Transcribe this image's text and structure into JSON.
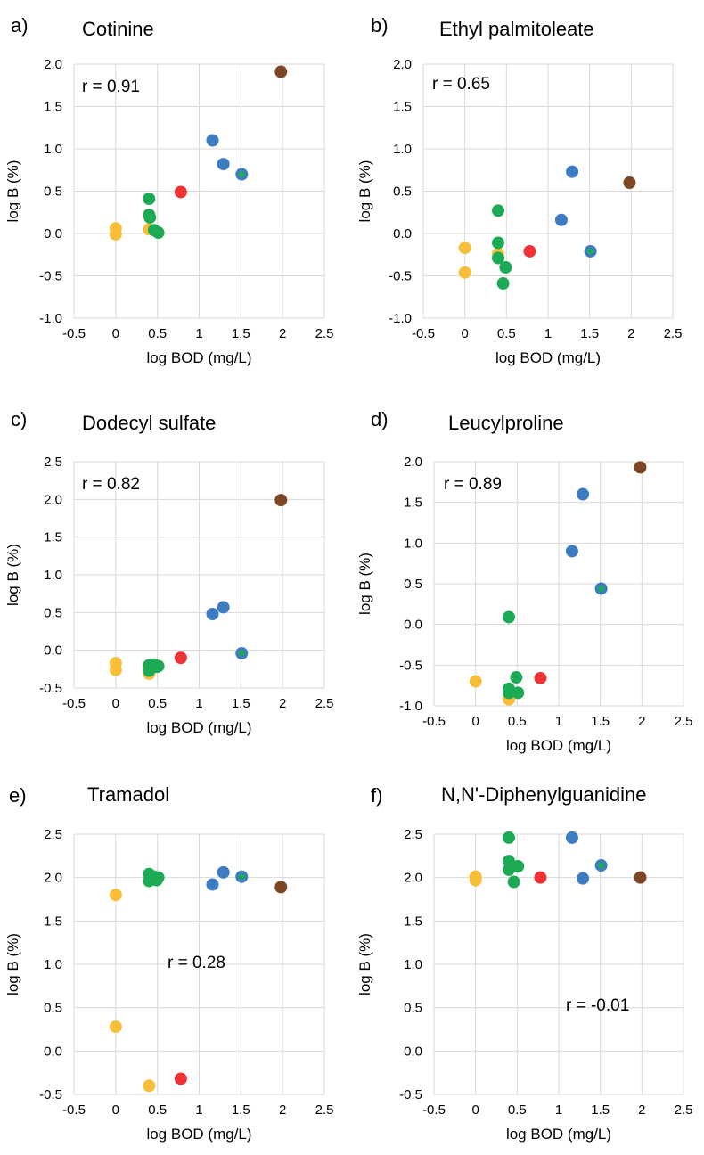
{
  "chart_data": [
    {
      "type": "scatter",
      "letter": "a)",
      "title": "Cotinine",
      "xlabel": "log BOD (mg/L)",
      "ylabel": "log B (%)",
      "xlim": [
        -0.5,
        2.5
      ],
      "ylim": [
        -1.0,
        2.0
      ],
      "xticks": [
        "-0.5",
        "0",
        "0.5",
        "1",
        "1.5",
        "2",
        "2.5"
      ],
      "yticks": [
        "2.0",
        "1.5",
        "1.0",
        "0.5",
        "0.0",
        "-0.5",
        "-1.0"
      ],
      "annotation": "r = 0.91",
      "grid": true,
      "points": [
        {
          "x": 0,
          "y": 0.06,
          "color": "#F6BE39"
        },
        {
          "x": 0,
          "y": -0.01,
          "color": "#F6BE39"
        },
        {
          "x": 0.4,
          "y": 0.05,
          "color": "#F6BE39"
        },
        {
          "x": 0.4,
          "y": 0.41,
          "color": "#1DAA55"
        },
        {
          "x": 0.4,
          "y": 0.22,
          "color": "#1DAA55"
        },
        {
          "x": 0.41,
          "y": 0.19,
          "color": "#1DAA55"
        },
        {
          "x": 0.46,
          "y": 0.04,
          "color": "#1DAA55"
        },
        {
          "x": 0.51,
          "y": 0.01,
          "color": "#1DAA55"
        },
        {
          "x": 0.78,
          "y": 0.49,
          "color": "#EE3436"
        },
        {
          "x": 1.16,
          "y": 1.1,
          "color": "#3D7CC1"
        },
        {
          "x": 1.29,
          "y": 0.82,
          "color": "#3D7CC1"
        },
        {
          "x": 1.51,
          "y": 0.7,
          "color": "#3D7CC1"
        },
        {
          "x": 1.51,
          "y": 0.7,
          "color": "#1DAA55",
          "small": true
        },
        {
          "x": 1.98,
          "y": 1.91,
          "color": "#7B4724"
        }
      ]
    },
    {
      "type": "scatter",
      "letter": "b)",
      "title": "Ethyl palmitoleate",
      "xlabel": "log BOD (mg/L)",
      "ylabel": "log B (%)",
      "xlim": [
        -0.5,
        2.5
      ],
      "ylim": [
        -1.0,
        2.0
      ],
      "xticks": [
        "-0.5",
        "0",
        "0.5",
        "1",
        "1.5",
        "2",
        "2.5"
      ],
      "yticks": [
        "2.0",
        "1.5",
        "1.0",
        "0.5",
        "0.0",
        "-0.5",
        "-1.0"
      ],
      "annotation": "r = 0.65",
      "grid": true,
      "points": [
        {
          "x": 0,
          "y": -0.17,
          "color": "#F6BE39"
        },
        {
          "x": 0,
          "y": -0.46,
          "color": "#F6BE39"
        },
        {
          "x": 0.4,
          "y": -0.24,
          "color": "#F6BE39"
        },
        {
          "x": 0.4,
          "y": 0.27,
          "color": "#1DAA55"
        },
        {
          "x": 0.4,
          "y": -0.11,
          "color": "#1DAA55"
        },
        {
          "x": 0.4,
          "y": -0.29,
          "color": "#1DAA55"
        },
        {
          "x": 0.49,
          "y": -0.4,
          "color": "#1DAA55"
        },
        {
          "x": 0.46,
          "y": -0.59,
          "color": "#1DAA55"
        },
        {
          "x": 0.78,
          "y": -0.21,
          "color": "#EE3436"
        },
        {
          "x": 1.16,
          "y": 0.16,
          "color": "#3D7CC1"
        },
        {
          "x": 1.29,
          "y": 0.73,
          "color": "#3D7CC1"
        },
        {
          "x": 1.51,
          "y": -0.21,
          "color": "#3D7CC1"
        },
        {
          "x": 1.51,
          "y": -0.21,
          "color": "#1DAA55",
          "small": true
        },
        {
          "x": 1.98,
          "y": 0.6,
          "color": "#7B4724"
        }
      ]
    },
    {
      "type": "scatter",
      "letter": "c)",
      "title": "Dodecyl sulfate",
      "xlabel": "log BOD (mg/L)",
      "ylabel": "log B (%)",
      "xlim": [
        -0.5,
        2.5
      ],
      "ylim": [
        -0.5,
        2.5
      ],
      "xticks": [
        "-0.5",
        "0",
        "0.5",
        "1",
        "1.5",
        "2",
        "2.5"
      ],
      "yticks": [
        "2.5",
        "2.0",
        "1.5",
        "1.0",
        "0.5",
        "0.0",
        "-0.5"
      ],
      "annotation": "r = 0.82",
      "grid": true,
      "points": [
        {
          "x": 0,
          "y": -0.17,
          "color": "#F6BE39"
        },
        {
          "x": 0,
          "y": -0.26,
          "color": "#F6BE39"
        },
        {
          "x": 0.4,
          "y": -0.31,
          "color": "#F6BE39"
        },
        {
          "x": 0.4,
          "y": -0.2,
          "color": "#1DAA55"
        },
        {
          "x": 0.4,
          "y": -0.27,
          "color": "#1DAA55"
        },
        {
          "x": 0.46,
          "y": -0.19,
          "color": "#1DAA55"
        },
        {
          "x": 0.49,
          "y": -0.22,
          "color": "#1DAA55"
        },
        {
          "x": 0.51,
          "y": -0.21,
          "color": "#1DAA55"
        },
        {
          "x": 0.78,
          "y": -0.1,
          "color": "#EE3436"
        },
        {
          "x": 1.16,
          "y": 0.48,
          "color": "#3D7CC1"
        },
        {
          "x": 1.29,
          "y": 0.57,
          "color": "#3D7CC1"
        },
        {
          "x": 1.51,
          "y": -0.04,
          "color": "#3D7CC1"
        },
        {
          "x": 1.51,
          "y": -0.04,
          "color": "#1DAA55",
          "small": true
        },
        {
          "x": 1.98,
          "y": 1.99,
          "color": "#7B4724"
        }
      ]
    },
    {
      "type": "scatter",
      "letter": "d)",
      "title": "Leucylproline",
      "xlabel": "log BOD (mg/L)",
      "ylabel": "log B (%)",
      "xlim": [
        -0.5,
        2.5
      ],
      "ylim": [
        -1.0,
        2.0
      ],
      "xticks": [
        "-0.5",
        "0",
        "0.5",
        "1",
        "1.5",
        "2",
        "2.5"
      ],
      "yticks": [
        "2.0",
        "1.5",
        "1.0",
        "0.5",
        "0.0",
        "-0.5",
        "-1.0"
      ],
      "annotation": "r = 0.89",
      "grid": true,
      "points": [
        {
          "x": 0,
          "y": -0.7,
          "color": "#F6BE39"
        },
        {
          "x": 0.4,
          "y": -0.92,
          "color": "#F6BE39"
        },
        {
          "x": 0.4,
          "y": 0.09,
          "color": "#1DAA55"
        },
        {
          "x": 0.4,
          "y": -0.79,
          "color": "#1DAA55"
        },
        {
          "x": 0.4,
          "y": -0.84,
          "color": "#1DAA55"
        },
        {
          "x": 0.49,
          "y": -0.65,
          "color": "#1DAA55"
        },
        {
          "x": 0.51,
          "y": -0.84,
          "color": "#1DAA55"
        },
        {
          "x": 0.78,
          "y": -0.66,
          "color": "#EE3436"
        },
        {
          "x": 1.16,
          "y": 0.9,
          "color": "#3D7CC1"
        },
        {
          "x": 1.29,
          "y": 1.6,
          "color": "#3D7CC1"
        },
        {
          "x": 1.51,
          "y": 0.44,
          "color": "#3D7CC1"
        },
        {
          "x": 1.51,
          "y": 0.44,
          "color": "#1DAA55",
          "small": true
        },
        {
          "x": 1.98,
          "y": 1.93,
          "color": "#7B4724"
        }
      ]
    },
    {
      "type": "scatter",
      "letter": "e)",
      "title": "Tramadol",
      "xlabel": "log BOD (mg/L)",
      "ylabel": "log B (%)",
      "xlim": [
        -0.5,
        2.5
      ],
      "ylim": [
        -0.5,
        2.5
      ],
      "xticks": [
        "-0.5",
        "0",
        "0.5",
        "1",
        "1.5",
        "2",
        "2.5"
      ],
      "yticks": [
        "2.5",
        "2.0",
        "1.5",
        "1.0",
        "0.5",
        "0.0",
        "-0.5"
      ],
      "annotation": "r = 0.28",
      "grid": true,
      "points": [
        {
          "x": 0,
          "y": 1.8,
          "color": "#F6BE39"
        },
        {
          "x": 0,
          "y": 0.28,
          "color": "#F6BE39"
        },
        {
          "x": 0.4,
          "y": -0.4,
          "color": "#F6BE39"
        },
        {
          "x": 0.4,
          "y": 2.04,
          "color": "#1DAA55"
        },
        {
          "x": 0.4,
          "y": 1.96,
          "color": "#1DAA55"
        },
        {
          "x": 0.46,
          "y": 2.01,
          "color": "#1DAA55"
        },
        {
          "x": 0.49,
          "y": 1.97,
          "color": "#1DAA55"
        },
        {
          "x": 0.51,
          "y": 2.0,
          "color": "#1DAA55"
        },
        {
          "x": 0.78,
          "y": -0.32,
          "color": "#EE3436"
        },
        {
          "x": 1.16,
          "y": 1.92,
          "color": "#3D7CC1"
        },
        {
          "x": 1.29,
          "y": 2.06,
          "color": "#3D7CC1"
        },
        {
          "x": 1.51,
          "y": 2.01,
          "color": "#3D7CC1"
        },
        {
          "x": 1.51,
          "y": 2.01,
          "color": "#1DAA55",
          "small": true
        },
        {
          "x": 1.98,
          "y": 1.89,
          "color": "#7B4724"
        }
      ]
    },
    {
      "type": "scatter",
      "letter": "f)",
      "title": "N,N'-Diphenylguanidine",
      "xlabel": "log BOD (mg/L)",
      "ylabel": "log B (%)",
      "xlim": [
        -0.5,
        2.5
      ],
      "ylim": [
        -0.5,
        2.5
      ],
      "xticks": [
        "-0.5",
        "0",
        "0.5",
        "1",
        "1.5",
        "2",
        "2.5"
      ],
      "yticks": [
        "2.5",
        "2.0",
        "1.5",
        "1.0",
        "0.5",
        "0.0",
        "-0.5"
      ],
      "annotation": "r = -0.01",
      "grid": true,
      "points": [
        {
          "x": 0,
          "y": 2.01,
          "color": "#F6BE39"
        },
        {
          "x": 0,
          "y": 1.97,
          "color": "#F6BE39"
        },
        {
          "x": 0.4,
          "y": 2.46,
          "color": "#1DAA55"
        },
        {
          "x": 0.4,
          "y": 2.19,
          "color": "#1DAA55"
        },
        {
          "x": 0.4,
          "y": 2.09,
          "color": "#1DAA55"
        },
        {
          "x": 0.51,
          "y": 2.13,
          "color": "#1DAA55"
        },
        {
          "x": 0.46,
          "y": 1.95,
          "color": "#1DAA55"
        },
        {
          "x": 0.78,
          "y": 2.0,
          "color": "#EE3436"
        },
        {
          "x": 1.16,
          "y": 2.46,
          "color": "#3D7CC1"
        },
        {
          "x": 1.29,
          "y": 1.99,
          "color": "#3D7CC1"
        },
        {
          "x": 1.51,
          "y": 2.14,
          "color": "#3D7CC1"
        },
        {
          "x": 1.51,
          "y": 2.14,
          "color": "#1DAA55",
          "small": true
        },
        {
          "x": 1.98,
          "y": 2.0,
          "color": "#7B4724"
        }
      ]
    }
  ]
}
